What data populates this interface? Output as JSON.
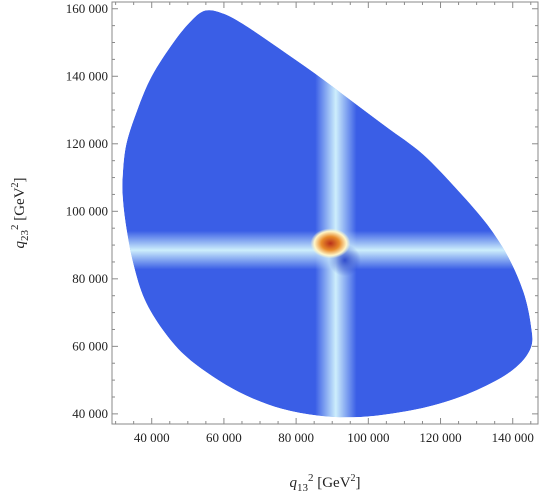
{
  "chart_data": {
    "type": "heatmap",
    "title": "",
    "xlabel": {
      "var": "q",
      "sub": "13",
      "sup": "2",
      "unit": " [GeV",
      "unit_sup": "2",
      "unit_end": "]"
    },
    "ylabel": {
      "var": "q",
      "sub": "23",
      "sup": "2",
      "unit": " [GeV",
      "unit_sup": "2",
      "unit_end": "]"
    },
    "xlim": [
      29000,
      147000
    ],
    "ylim": [
      37000,
      162000
    ],
    "xticks": [
      {
        "value": 40000,
        "label": "40 000"
      },
      {
        "value": 60000,
        "label": "60 000"
      },
      {
        "value": 80000,
        "label": "80 000"
      },
      {
        "value": 100000,
        "label": "100 000"
      },
      {
        "value": 120000,
        "label": "120 000"
      },
      {
        "value": 140000,
        "label": "140 000"
      }
    ],
    "yticks": [
      {
        "value": 40000,
        "label": "40 000"
      },
      {
        "value": 60000,
        "label": "60 000"
      },
      {
        "value": 80000,
        "label": "80 000"
      },
      {
        "value": 100000,
        "label": "100 000"
      },
      {
        "value": 120000,
        "label": "120 000"
      },
      {
        "value": 140000,
        "label": "140 000"
      },
      {
        "value": 160000,
        "label": "160 000"
      }
    ],
    "region_boundary": [
      [
        32000,
        111000
      ],
      [
        33000,
        120000
      ],
      [
        36000,
        130000
      ],
      [
        40000,
        140000
      ],
      [
        46000,
        150000
      ],
      [
        51000,
        156500
      ],
      [
        55000,
        159500
      ],
      [
        60000,
        158500
      ],
      [
        66000,
        155000
      ],
      [
        75000,
        148500
      ],
      [
        85000,
        141000
      ],
      [
        95000,
        133000
      ],
      [
        105000,
        125000
      ],
      [
        115000,
        117000
      ],
      [
        125000,
        106000
      ],
      [
        133000,
        96000
      ],
      [
        139000,
        86000
      ],
      [
        143000,
        76000
      ],
      [
        145000,
        66500
      ],
      [
        145000,
        59500
      ],
      [
        140000,
        53000
      ],
      [
        130000,
        47000
      ],
      [
        118000,
        42500
      ],
      [
        106000,
        40000
      ],
      [
        96000,
        39000
      ],
      [
        86000,
        39500
      ],
      [
        76000,
        41500
      ],
      [
        66000,
        45500
      ],
      [
        57000,
        51000
      ],
      [
        49000,
        57500
      ],
      [
        43000,
        65000
      ],
      [
        38000,
        74000
      ],
      [
        35000,
        84000
      ],
      [
        33000,
        95000
      ],
      [
        32000,
        104000
      ]
    ],
    "bands": [
      {
        "orientation": "vertical",
        "center": 91000,
        "width": 2600
      },
      {
        "orientation": "horizontal",
        "center": 88500,
        "width": 2600
      }
    ],
    "peak": {
      "x": 89500,
      "y": 90500
    },
    "dip": {
      "x": 93500,
      "y": 85500
    },
    "colors": {
      "background": "#3a5ee6",
      "band": "#cdeefc",
      "peak_core": "#b8301a",
      "peak_mid": "#e88a2a",
      "peak_outer": "#fff6c8",
      "dip": "#2440c8",
      "frame": "#8a8a8a"
    }
  }
}
